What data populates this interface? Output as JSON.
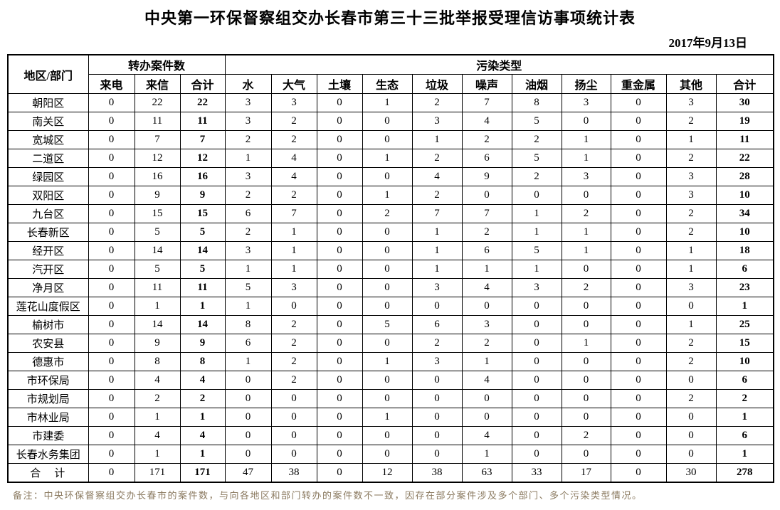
{
  "page": {
    "title": "中央第一环保督察组交办长春市第三十三批举报受理信访事项统计表",
    "date": "2017年9月13日",
    "note": "备注：中央环保督察组交办长春市的案件数，与向各地区和部门转办的案件数不一致，因存在部分案件涉及多个部门、多个污染类型情况。"
  },
  "colors": {
    "background": "#ffffff",
    "table_border": "#000000",
    "title_text": "#000000",
    "note_text": "#8b7a60"
  },
  "table": {
    "header": {
      "region": "地区/部门",
      "transfer_group": "转办案件数",
      "pollution_group": "污染类型",
      "transfer_cols": [
        "来电",
        "来信",
        "合计"
      ],
      "pollution_cols": [
        "水",
        "大气",
        "土壤",
        "生态",
        "垃圾",
        "噪声",
        "油烟",
        "扬尘",
        "重金属",
        "其他",
        "合计"
      ]
    },
    "rows": [
      {
        "name": "朝阳区",
        "values": [
          0,
          22,
          22,
          3,
          3,
          0,
          1,
          2,
          7,
          8,
          3,
          0,
          3,
          30
        ]
      },
      {
        "name": "南关区",
        "values": [
          0,
          11,
          11,
          3,
          2,
          0,
          0,
          3,
          4,
          5,
          0,
          0,
          2,
          19
        ]
      },
      {
        "name": "宽城区",
        "values": [
          0,
          7,
          7,
          2,
          2,
          0,
          0,
          1,
          2,
          2,
          1,
          0,
          1,
          11
        ]
      },
      {
        "name": "二道区",
        "values": [
          0,
          12,
          12,
          1,
          4,
          0,
          1,
          2,
          6,
          5,
          1,
          0,
          2,
          22
        ]
      },
      {
        "name": "绿园区",
        "values": [
          0,
          16,
          16,
          3,
          4,
          0,
          0,
          4,
          9,
          2,
          3,
          0,
          3,
          28
        ]
      },
      {
        "name": "双阳区",
        "values": [
          0,
          9,
          9,
          2,
          2,
          0,
          1,
          2,
          0,
          0,
          0,
          0,
          3,
          10
        ]
      },
      {
        "name": "九台区",
        "values": [
          0,
          15,
          15,
          6,
          7,
          0,
          2,
          7,
          7,
          1,
          2,
          0,
          2,
          34
        ]
      },
      {
        "name": "长春新区",
        "values": [
          0,
          5,
          5,
          2,
          1,
          0,
          0,
          1,
          2,
          1,
          1,
          0,
          2,
          10
        ]
      },
      {
        "name": "经开区",
        "values": [
          0,
          14,
          14,
          3,
          1,
          0,
          0,
          1,
          6,
          5,
          1,
          0,
          1,
          18
        ]
      },
      {
        "name": "汽开区",
        "values": [
          0,
          5,
          5,
          1,
          1,
          0,
          0,
          1,
          1,
          1,
          0,
          0,
          1,
          6
        ]
      },
      {
        "name": "净月区",
        "values": [
          0,
          11,
          11,
          5,
          3,
          0,
          0,
          3,
          4,
          3,
          2,
          0,
          3,
          23
        ]
      },
      {
        "name": "莲花山度假区",
        "values": [
          0,
          1,
          1,
          1,
          0,
          0,
          0,
          0,
          0,
          0,
          0,
          0,
          0,
          1
        ]
      },
      {
        "name": "榆树市",
        "values": [
          0,
          14,
          14,
          8,
          2,
          0,
          5,
          6,
          3,
          0,
          0,
          0,
          1,
          25
        ]
      },
      {
        "name": "农安县",
        "values": [
          0,
          9,
          9,
          6,
          2,
          0,
          0,
          2,
          2,
          0,
          1,
          0,
          2,
          15
        ]
      },
      {
        "name": "德惠市",
        "values": [
          0,
          8,
          8,
          1,
          2,
          0,
          1,
          3,
          1,
          0,
          0,
          0,
          2,
          10
        ]
      },
      {
        "name": "市环保局",
        "values": [
          0,
          4,
          4,
          0,
          2,
          0,
          0,
          0,
          4,
          0,
          0,
          0,
          0,
          6
        ]
      },
      {
        "name": "市规划局",
        "values": [
          0,
          2,
          2,
          0,
          0,
          0,
          0,
          0,
          0,
          0,
          0,
          0,
          2,
          2
        ]
      },
      {
        "name": "市林业局",
        "values": [
          0,
          1,
          1,
          0,
          0,
          0,
          1,
          0,
          0,
          0,
          0,
          0,
          0,
          1
        ]
      },
      {
        "name": "市建委",
        "values": [
          0,
          4,
          4,
          0,
          0,
          0,
          0,
          0,
          4,
          0,
          2,
          0,
          0,
          6
        ]
      },
      {
        "name": "长春水务集团",
        "values": [
          0,
          1,
          1,
          0,
          0,
          0,
          0,
          0,
          1,
          0,
          0,
          0,
          0,
          1
        ]
      }
    ],
    "total_row": {
      "name": "合　计",
      "values": [
        0,
        171,
        171,
        47,
        38,
        0,
        12,
        38,
        63,
        33,
        17,
        0,
        30,
        278
      ]
    }
  }
}
